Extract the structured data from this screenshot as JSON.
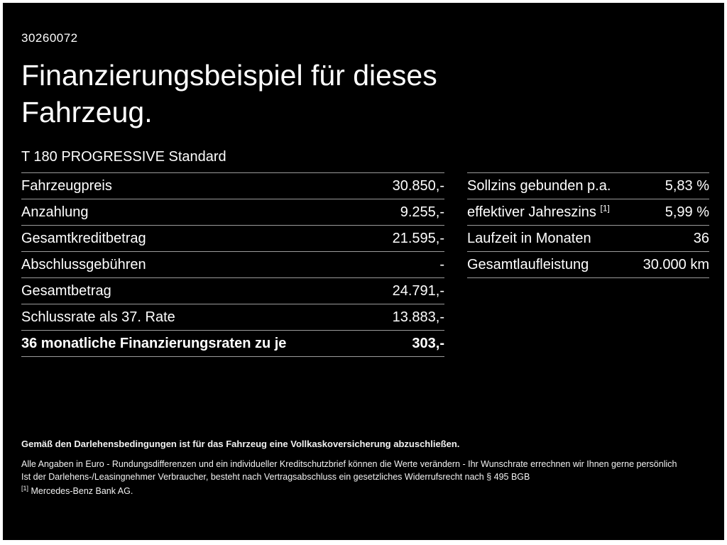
{
  "page": {
    "id_number": "30260072",
    "title_line1": "Finanzierungsbeispiel für dieses",
    "title_line2": "Fahrzeug.",
    "model": "T 180 PROGRESSIVE Standard"
  },
  "left_table": {
    "rows": [
      {
        "label": "Fahrzeugpreis",
        "value": "30.850,-"
      },
      {
        "label": "Anzahlung",
        "value": "9.255,-"
      },
      {
        "label": "Gesamtkreditbetrag",
        "value": "21.595,-"
      },
      {
        "label": "Abschlussgebühren",
        "value": "-"
      },
      {
        "label": "Gesamtbetrag",
        "value": "24.791,-"
      },
      {
        "label": "Schlussrate als 37. Rate",
        "value": "13.883,-"
      },
      {
        "label": "36 monatliche Finanzierungsraten zu je",
        "value": "303,-"
      }
    ]
  },
  "right_table": {
    "rows": [
      {
        "label": "Sollzins gebunden p.a.",
        "value": "5,83 %"
      },
      {
        "label": "effektiver Jahreszins",
        "label_sup": "[1]",
        "value": "5,99 %"
      },
      {
        "label": "Laufzeit in Monaten",
        "value": "36"
      },
      {
        "label": "Gesamtlaufleistung",
        "value": "30.000 km"
      }
    ]
  },
  "footer": {
    "line1": "Gemäß den Darlehensbedingungen ist für das Fahrzeug eine Vollkaskoversicherung abzuschließen.",
    "line2": "Alle Angaben in Euro - Rundungsdifferenzen und ein individueller Kreditschutzbrief können die Werte verändern - Ihr Wunschrate errechnen wir Ihnen gerne persönlich",
    "line3": "Ist der Darlehens-/Leasingnehmer Verbraucher, besteht nach Vertragsabschluss ein gesetzliches Widerrufsrecht nach § 495 BGB",
    "note_sup": "[1]",
    "note_text": "Mercedes-Benz Bank AG."
  }
}
